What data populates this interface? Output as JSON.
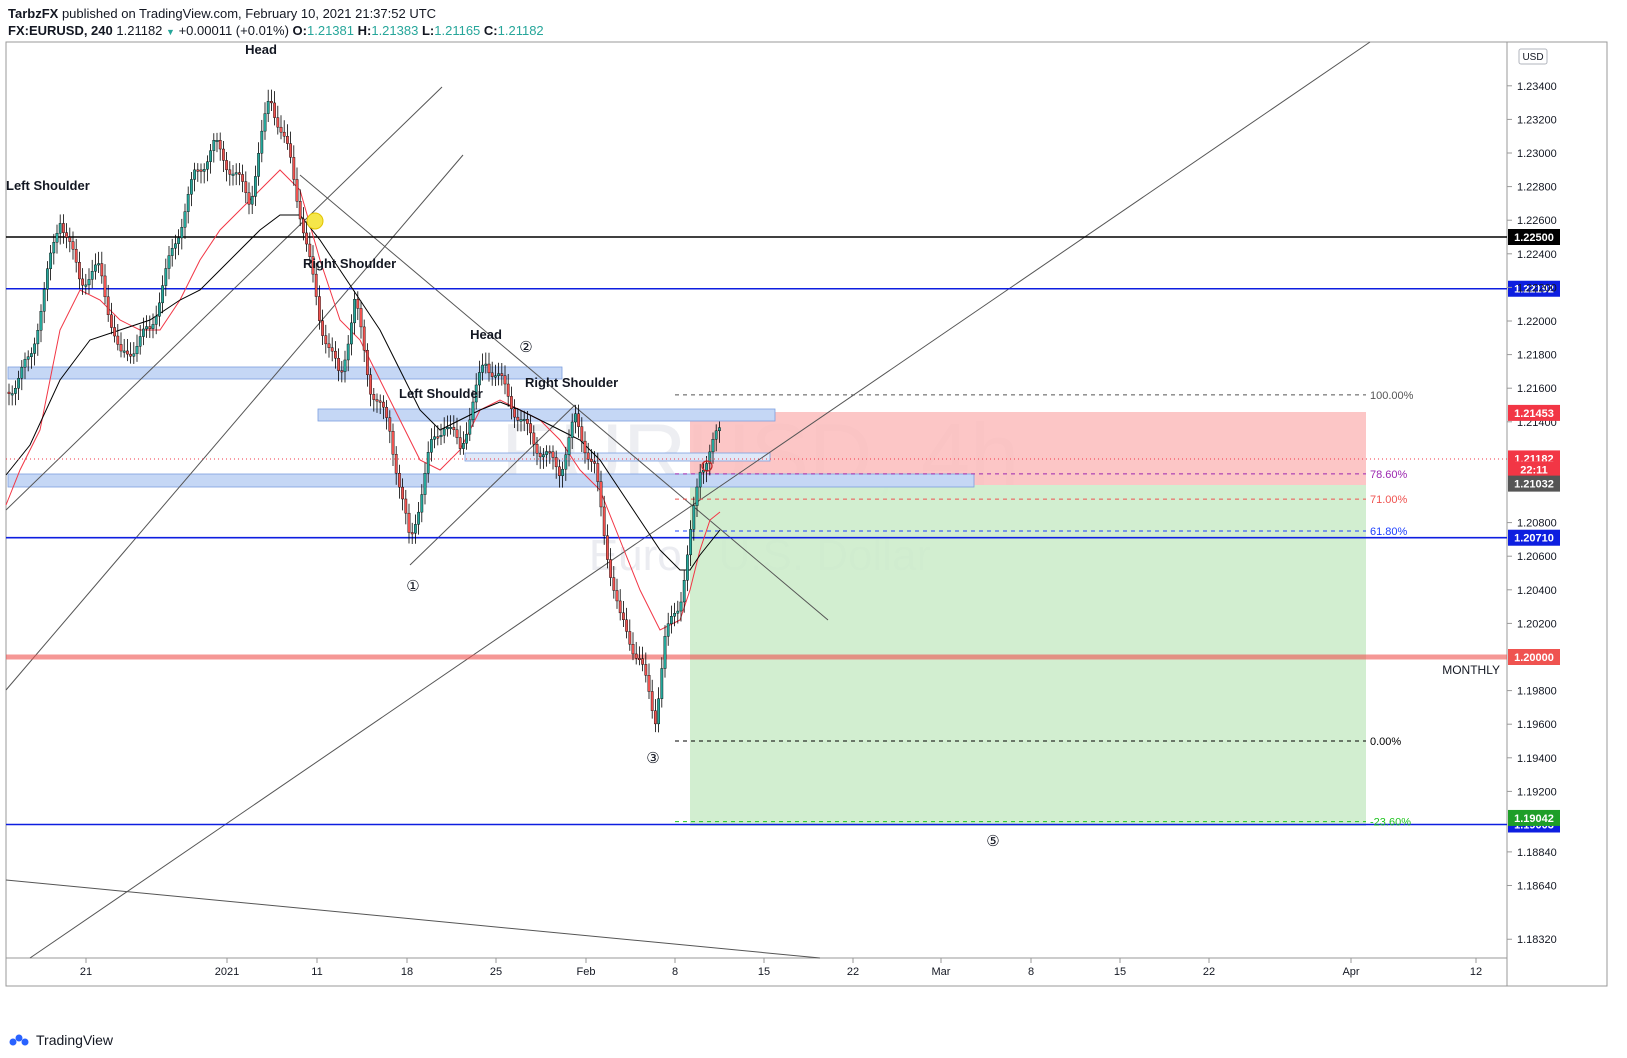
{
  "header": {
    "publisher": "TarbzFX",
    "published_text": " published on TradingView.com, February 10, 2021 21:37:52 UTC",
    "symbol": "FX:EURUSD, 240",
    "last": "1.21182",
    "change": "+0.00011 (+0.01%)",
    "o_label": "O:",
    "o": "1.21381",
    "h_label": "H:",
    "h": "1.21383",
    "l_label": "L:",
    "l": "1.21165",
    "c_label": "C:",
    "c": "1.21182"
  },
  "footer": {
    "brand": "TradingView"
  },
  "currency_badge": "USD",
  "watermark": {
    "symbol": "EURUSD, 4h",
    "name": "Euro / U.S. Dollar"
  },
  "colors": {
    "up": "#26a69a",
    "down": "#ef5350",
    "blue_line": "#0d1ee0",
    "ema_red": "#f23645",
    "zone_blue": "#c5d7f5",
    "stop_zone": "#fbbcbc",
    "target_zone": "#cdeccb"
  },
  "chart_data": {
    "type": "candlestick",
    "symbol": "FX:EURUSD",
    "timeframe": "240",
    "ylim": [
      1.1824,
      1.2364
    ],
    "y_ticks": [
      "1.23400",
      "1.23200",
      "1.23000",
      "1.22800",
      "1.22600",
      "1.22400",
      "1.22200",
      "1.22000",
      "1.21800",
      "1.21600",
      "1.21400",
      "1.20800",
      "1.20600",
      "1.20400",
      "1.20200",
      "1.19800",
      "1.19600",
      "1.19400",
      "1.19200",
      "1.18840",
      "1.18640",
      "1.18320"
    ],
    "x_ticks": [
      "21",
      "2021",
      "11",
      "18",
      "25",
      "Feb",
      "8",
      "15",
      "22",
      "Mar",
      "8",
      "15",
      "22",
      "Apr",
      "12"
    ],
    "horizontal_levels": [
      {
        "value": 1.225,
        "label": "1.22500",
        "color": "#000000"
      },
      {
        "value": 1.22192,
        "label": "1.22192",
        "color": "#0d1ee0"
      },
      {
        "value": 1.2071,
        "label": "1.20710",
        "color": "#0d1ee0"
      },
      {
        "value": 1.2,
        "label": "1.20000",
        "color": "#ef5350",
        "note": "MONTHLY"
      },
      {
        "value": 1.19003,
        "label": "1.19003",
        "color": "#0d1ee0"
      }
    ],
    "price_tags": [
      {
        "value": 1.21453,
        "label": "1.21453",
        "color": "#f23645"
      },
      {
        "value": 1.21182,
        "label": "1.21182",
        "color": "#f23645"
      },
      {
        "value": 1.21117,
        "label": "22:11",
        "color": "#f23645"
      },
      {
        "value": 1.21032,
        "label": "1.21032",
        "color": "#555555"
      },
      {
        "value": 1.19042,
        "label": "1.19042",
        "color": "#1e9e28"
      }
    ],
    "fibonacci": [
      {
        "level": "100.00%",
        "value": 1.2156,
        "color": "#555555"
      },
      {
        "level": "78.60%",
        "value": 1.2109,
        "color": "#9c27b0"
      },
      {
        "level": "71.00%",
        "value": 1.2094,
        "color": "#ef5350"
      },
      {
        "level": "61.80%",
        "value": 1.2075,
        "color": "#1e40ff"
      },
      {
        "level": "0.00%",
        "value": 1.195,
        "color": "#000000"
      },
      {
        "level": "-23.60%",
        "value": 1.1902,
        "color": "#1ec41e"
      }
    ],
    "annotations": [
      {
        "text": "Head",
        "near": "1.2350"
      },
      {
        "text": "Left Shoulder",
        "near": "1.2265"
      },
      {
        "text": "Right Shoulder",
        "near": "1.2225"
      },
      {
        "text": "Head",
        "near": "1.2190"
      },
      {
        "text": "Left Shoulder",
        "near": "1.2152"
      },
      {
        "text": "Right Shoulder",
        "near": "1.2158"
      },
      {
        "text": "MONTHLY",
        "near": "1.2000"
      }
    ],
    "wave_labels": [
      "①",
      "②",
      "③",
      "⑤"
    ],
    "last_price": 1.21182
  }
}
